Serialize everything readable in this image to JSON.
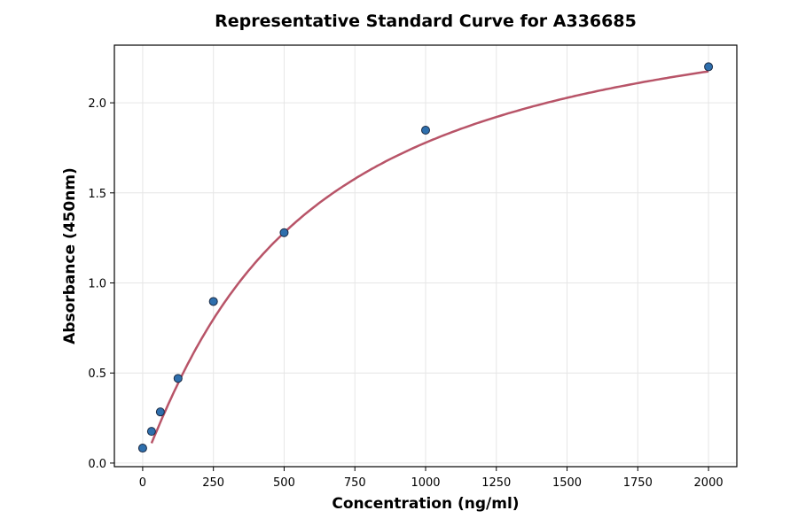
{
  "chart_data": {
    "type": "scatter",
    "title": "Representative Standard Curve for A336685",
    "xlabel": "Concentration (ng/ml)",
    "ylabel": "Absorbance (450nm)",
    "xlim": [
      -100,
      2100
    ],
    "ylim": [
      -0.02,
      2.32
    ],
    "xticks": [
      0,
      250,
      500,
      750,
      1000,
      1250,
      1500,
      1750,
      2000
    ],
    "yticks": [
      "0.0",
      "0.5",
      "1.0",
      "1.5",
      "2.0"
    ],
    "grid": true,
    "points": {
      "x": [
        0,
        31.25,
        62.5,
        125,
        250,
        500,
        1000,
        2000
      ],
      "y": [
        0.083,
        0.176,
        0.284,
        0.47,
        0.897,
        1.279,
        1.848,
        2.2
      ]
    },
    "fit_curve": {
      "model": "4PL",
      "x_range": [
        31.25,
        2000
      ]
    },
    "colors": {
      "points": "#2e6fad",
      "point_edge": "#1a2a44",
      "curve": "#b85468"
    }
  }
}
